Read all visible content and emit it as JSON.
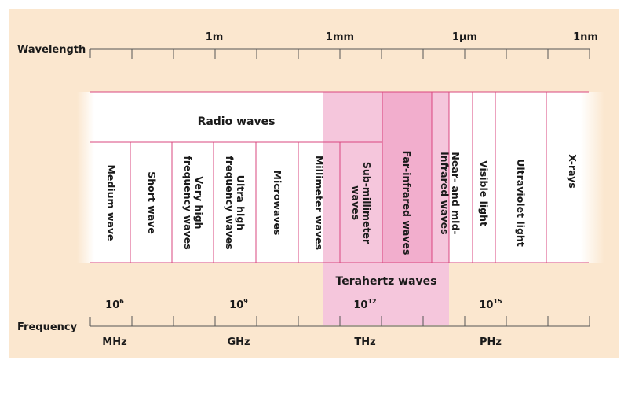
{
  "wavelength": {
    "label": "Wavelength",
    "ticks": [
      "1m",
      "1mm",
      "1µm",
      "1nm"
    ]
  },
  "frequency": {
    "label": "Frequency",
    "powers": [
      {
        "base": "10",
        "exp": "6"
      },
      {
        "base": "10",
        "exp": "9"
      },
      {
        "base": "10",
        "exp": "12"
      },
      {
        "base": "10",
        "exp": "15"
      }
    ],
    "units": [
      "MHz",
      "GHz",
      "THz",
      "PHz"
    ]
  },
  "radio_waves_label": "Radio waves",
  "terahertz_label": "Terahertz waves",
  "bands": [
    {
      "lines": [
        "Medium wave"
      ]
    },
    {
      "lines": [
        "Short wave"
      ]
    },
    {
      "lines": [
        "Very high",
        "frequency waves"
      ]
    },
    {
      "lines": [
        "Ultra high",
        "frequency waves"
      ]
    },
    {
      "lines": [
        "Microwaves"
      ]
    },
    {
      "lines": [
        "Millimeter waves"
      ]
    },
    {
      "lines": [
        "Sub-millimeter",
        "waves"
      ]
    },
    {
      "lines": [
        "Far-infrared waves"
      ]
    },
    {
      "lines": [
        "Near- and mid-",
        "infrared waves"
      ]
    },
    {
      "lines": [
        "Visible light"
      ]
    },
    {
      "lines": [
        "Ultraviolet light"
      ]
    },
    {
      "lines": [
        "X-rays"
      ]
    }
  ],
  "colors": {
    "background": "#fbe7cf",
    "panel": "#ffffff",
    "terahertz_fill": "#f5c6dc",
    "divider": "#d9477f",
    "axis": "#555555",
    "text": "#1a1a1a"
  }
}
